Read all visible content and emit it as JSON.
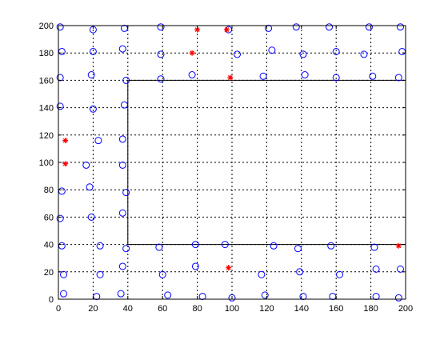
{
  "chart_data": {
    "type": "scatter",
    "title": "",
    "xlabel": "",
    "ylabel": "",
    "xlim": [
      0,
      200
    ],
    "ylim": [
      0,
      200
    ],
    "xticks": [
      0,
      20,
      40,
      60,
      80,
      100,
      120,
      140,
      160,
      180,
      200
    ],
    "yticks": [
      0,
      20,
      40,
      60,
      80,
      100,
      120,
      140,
      160,
      180,
      200
    ],
    "xtick_labels": [
      "0",
      "20",
      "40",
      "60",
      "80",
      "100",
      "120",
      "140",
      "160",
      "180",
      "200"
    ],
    "ytick_labels": [
      "0",
      "20",
      "40",
      "60",
      "80",
      "100",
      "120",
      "140",
      "160",
      "180",
      "200"
    ],
    "grid": true,
    "grid_style": "dashed",
    "inner_region": {
      "x": [
        40,
        200
      ],
      "y": [
        40,
        160
      ]
    },
    "series": [
      {
        "marker": "circle",
        "color": "#0000ff",
        "points": [
          [
            1,
            199
          ],
          [
            20,
            197
          ],
          [
            38,
            198
          ],
          [
            59,
            199
          ],
          [
            98,
            197
          ],
          [
            121,
            198
          ],
          [
            137,
            199
          ],
          [
            156,
            199
          ],
          [
            179,
            199
          ],
          [
            197,
            199
          ],
          [
            2,
            181
          ],
          [
            20,
            181
          ],
          [
            37,
            183
          ],
          [
            59,
            179
          ],
          [
            103,
            179
          ],
          [
            123,
            182
          ],
          [
            141,
            179
          ],
          [
            160,
            181
          ],
          [
            176,
            179
          ],
          [
            198,
            181
          ],
          [
            1,
            162
          ],
          [
            19,
            164
          ],
          [
            39,
            160
          ],
          [
            59,
            161
          ],
          [
            77,
            164
          ],
          [
            118,
            163
          ],
          [
            142,
            164
          ],
          [
            160,
            162
          ],
          [
            181,
            163
          ],
          [
            196,
            162
          ],
          [
            1,
            141
          ],
          [
            20,
            139
          ],
          [
            38,
            142
          ],
          [
            23,
            116
          ],
          [
            37,
            117
          ],
          [
            16,
            98
          ],
          [
            37,
            98
          ],
          [
            2,
            79
          ],
          [
            18,
            82
          ],
          [
            39,
            78
          ],
          [
            1,
            59
          ],
          [
            19,
            60
          ],
          [
            37,
            63
          ],
          [
            2,
            39
          ],
          [
            24,
            39
          ],
          [
            39,
            37
          ],
          [
            58,
            38
          ],
          [
            79,
            40
          ],
          [
            96,
            40
          ],
          [
            124,
            39
          ],
          [
            138,
            37
          ],
          [
            157,
            39
          ],
          [
            182,
            38
          ],
          [
            3,
            18
          ],
          [
            24,
            18
          ],
          [
            37,
            24
          ],
          [
            60,
            18
          ],
          [
            79,
            24
          ],
          [
            117,
            18
          ],
          [
            139,
            20
          ],
          [
            162,
            18
          ],
          [
            183,
            22
          ],
          [
            197,
            22
          ],
          [
            3,
            4
          ],
          [
            22,
            2
          ],
          [
            36,
            4
          ],
          [
            63,
            3
          ],
          [
            83,
            2
          ],
          [
            100,
            1
          ],
          [
            119,
            3
          ],
          [
            141,
            2
          ],
          [
            158,
            2
          ],
          [
            183,
            2
          ],
          [
            196,
            1
          ]
        ]
      },
      {
        "marker": "star",
        "color": "#ff0000",
        "points": [
          [
            80,
            197
          ],
          [
            97,
            197
          ],
          [
            77,
            180
          ],
          [
            99,
            162
          ],
          [
            4,
            116
          ],
          [
            4,
            99
          ],
          [
            98,
            23
          ],
          [
            196,
            39
          ]
        ]
      }
    ]
  }
}
